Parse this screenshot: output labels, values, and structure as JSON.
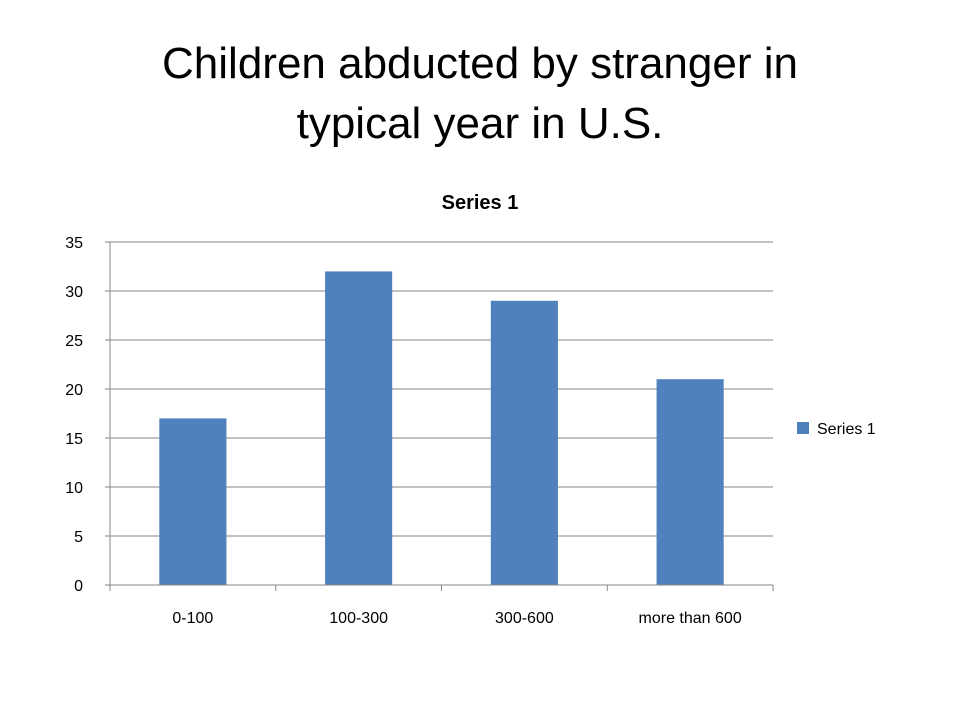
{
  "slide": {
    "title_line1": "Children abducted by stranger in",
    "title_line2": "typical year in U.S."
  },
  "chart_data": {
    "type": "bar",
    "title": "Series 1",
    "categories": [
      "0-100",
      "100-300",
      "300-600",
      "more than 600"
    ],
    "series": [
      {
        "name": "Series 1",
        "values": [
          17,
          32,
          29,
          21
        ],
        "color": "#4F81BD"
      }
    ],
    "ylim": [
      0,
      35
    ],
    "yticks": [
      0,
      5,
      10,
      15,
      20,
      25,
      30,
      35
    ],
    "grid": true,
    "legend": "right"
  }
}
